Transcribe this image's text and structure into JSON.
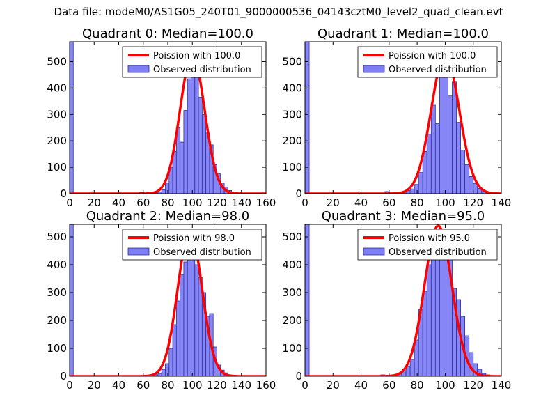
{
  "suptitle": "Data file: modeM0/AS1G05_240T01_9000000536_04143cztM0_level2_quad_clean.evt",
  "colors": {
    "bar_fill": "#7f7ff5",
    "bar_edge": "#2e2e9e",
    "curve": "#ff0000",
    "axis": "#000000",
    "background": "#ffffff"
  },
  "legend_labels": {
    "observed": "Observed distribution"
  },
  "chart_data": [
    {
      "type": "bar",
      "title": "Quadrant 0: Median=100.0",
      "curve_label": "Poission with 100.0",
      "xlim": [
        0,
        160
      ],
      "ylim": [
        0,
        575
      ],
      "xticks": [
        0,
        20,
        40,
        60,
        80,
        100,
        120,
        140,
        160
      ],
      "yticks": [
        0,
        100,
        200,
        300,
        400,
        500
      ],
      "bin_width": 3,
      "bars": [
        [
          0,
          575
        ],
        [
          57,
          5
        ],
        [
          60,
          2
        ],
        [
          63,
          1
        ],
        [
          66,
          3
        ],
        [
          69,
          3
        ],
        [
          72,
          6
        ],
        [
          75,
          15
        ],
        [
          78,
          40
        ],
        [
          81,
          100
        ],
        [
          84,
          160
        ],
        [
          87,
          250
        ],
        [
          90,
          195
        ],
        [
          93,
          315
        ],
        [
          96,
          435
        ],
        [
          99,
          515
        ],
        [
          102,
          455
        ],
        [
          105,
          365
        ],
        [
          108,
          300
        ],
        [
          111,
          230
        ],
        [
          114,
          185
        ],
        [
          117,
          110
        ],
        [
          120,
          75
        ],
        [
          123,
          40
        ],
        [
          126,
          25
        ],
        [
          129,
          12
        ],
        [
          132,
          5
        ],
        [
          135,
          2
        ]
      ],
      "curve_mu": 100,
      "curve_peak": 525
    },
    {
      "type": "bar",
      "title": "Quadrant 1: Median=100.0",
      "curve_label": "Poission with 100.0",
      "xlim": [
        0,
        140
      ],
      "ylim": [
        0,
        575
      ],
      "xticks": [
        0,
        20,
        40,
        60,
        80,
        100,
        120,
        140
      ],
      "yticks": [
        0,
        100,
        200,
        300,
        400,
        500
      ],
      "bin_width": 3,
      "bars": [
        [
          0,
          575
        ],
        [
          57,
          8
        ],
        [
          60,
          3
        ],
        [
          66,
          3
        ],
        [
          69,
          8
        ],
        [
          72,
          12
        ],
        [
          75,
          18
        ],
        [
          78,
          35
        ],
        [
          81,
          80
        ],
        [
          84,
          160
        ],
        [
          87,
          225
        ],
        [
          90,
          335
        ],
        [
          93,
          265
        ],
        [
          96,
          480
        ],
        [
          99,
          535
        ],
        [
          102,
          370
        ],
        [
          105,
          425
        ],
        [
          108,
          270
        ],
        [
          111,
          165
        ],
        [
          114,
          110
        ],
        [
          117,
          65
        ],
        [
          120,
          38
        ],
        [
          123,
          20
        ],
        [
          126,
          8
        ],
        [
          129,
          4
        ]
      ],
      "curve_mu": 100,
      "curve_peak": 525
    },
    {
      "type": "bar",
      "title": "Quadrant 2: Median=98.0",
      "curve_label": "Poission with 98.0",
      "xlim": [
        0,
        160
      ],
      "ylim": [
        0,
        545
      ],
      "xticks": [
        0,
        20,
        40,
        60,
        80,
        100,
        120,
        140,
        160
      ],
      "yticks": [
        0,
        100,
        200,
        300,
        400,
        500
      ],
      "bin_width": 3,
      "bars": [
        [
          0,
          545
        ],
        [
          60,
          4
        ],
        [
          66,
          3
        ],
        [
          69,
          5
        ],
        [
          72,
          10
        ],
        [
          75,
          25
        ],
        [
          78,
          45
        ],
        [
          81,
          100
        ],
        [
          84,
          185
        ],
        [
          87,
          270
        ],
        [
          90,
          365
        ],
        [
          93,
          410
        ],
        [
          96,
          510
        ],
        [
          99,
          445
        ],
        [
          102,
          400
        ],
        [
          105,
          355
        ],
        [
          108,
          300
        ],
        [
          111,
          215
        ],
        [
          114,
          225
        ],
        [
          117,
          105
        ],
        [
          120,
          40
        ],
        [
          123,
          22
        ],
        [
          126,
          12
        ],
        [
          129,
          5
        ],
        [
          132,
          2
        ]
      ],
      "curve_mu": 98,
      "curve_peak": 520
    },
    {
      "type": "bar",
      "title": "Quadrant 3: Median=95.0",
      "curve_label": "Poission with 95.0",
      "xlim": [
        0,
        140
      ],
      "ylim": [
        0,
        545
      ],
      "xticks": [
        0,
        20,
        40,
        60,
        80,
        100,
        120,
        140
      ],
      "yticks": [
        0,
        100,
        200,
        300,
        400,
        500
      ],
      "bin_width": 3,
      "bars": [
        [
          0,
          545
        ],
        [
          54,
          5
        ],
        [
          60,
          4
        ],
        [
          63,
          3
        ],
        [
          66,
          8
        ],
        [
          69,
          20
        ],
        [
          72,
          35
        ],
        [
          75,
          60
        ],
        [
          78,
          130
        ],
        [
          81,
          240
        ],
        [
          84,
          305
        ],
        [
          87,
          400
        ],
        [
          90,
          420
        ],
        [
          93,
          490
        ],
        [
          96,
          510
        ],
        [
          99,
          465
        ],
        [
          102,
          430
        ],
        [
          105,
          315
        ],
        [
          108,
          275
        ],
        [
          111,
          215
        ],
        [
          114,
          145
        ],
        [
          117,
          85
        ],
        [
          120,
          45
        ],
        [
          123,
          25
        ],
        [
          126,
          10
        ],
        [
          129,
          5
        ]
      ],
      "curve_mu": 95,
      "curve_peak": 540
    }
  ]
}
